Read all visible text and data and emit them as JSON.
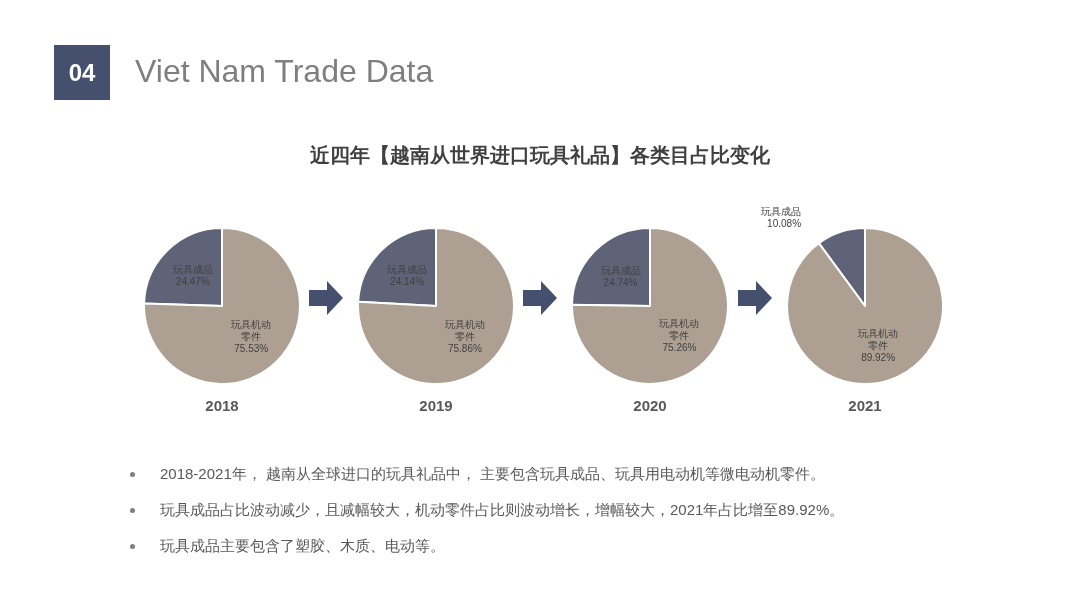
{
  "chart_data": [
    {
      "type": "other",
      "title": "Viet Nam Trade Data",
      "subtitle": "近四年【越南从世界进口玩具礼品】各类目占比变化",
      "annotations": [
        "04"
      ]
    },
    {
      "type": "pie",
      "title": "2018",
      "categories": [
        "玩具成品",
        "玩具机动零件"
      ],
      "values": [
        24.47,
        75.53
      ],
      "colors": [
        "#5f6378",
        "#ada093"
      ],
      "value_labels": [
        "24.47%",
        "75.53%"
      ]
    },
    {
      "type": "pie",
      "title": "2019",
      "categories": [
        "玩具成品",
        "玩具机动零件"
      ],
      "values": [
        24.14,
        75.86
      ],
      "colors": [
        "#5f6378",
        "#ada093"
      ],
      "value_labels": [
        "24.14%",
        "75.86%"
      ]
    },
    {
      "type": "pie",
      "title": "2020",
      "categories": [
        "玩具成品",
        "玩具机动零件"
      ],
      "values": [
        24.74,
        75.26
      ],
      "colors": [
        "#5f6378",
        "#ada093"
      ],
      "value_labels": [
        "24.74%",
        "75.26%"
      ]
    },
    {
      "type": "pie",
      "title": "2021",
      "categories": [
        "玩具成品",
        "玩具机动零件"
      ],
      "values": [
        10.08,
        89.92
      ],
      "colors": [
        "#5f6378",
        "#ada093"
      ],
      "value_labels": [
        "10.08%",
        "89.92%"
      ]
    },
    {
      "type": "other",
      "annotations": [
        "2018-2021年， 越南从全球进口的玩具礼品中， 主要包含玩具成品、玩具用电动机等微电动机零件。",
        "玩具成品占比波动减少，且减幅较大，机动零件占比则波动增长，增幅较大，2021年占比增至89.92%。",
        "玩具成品主要包含了塑胶、木质、电动等。"
      ]
    }
  ]
}
